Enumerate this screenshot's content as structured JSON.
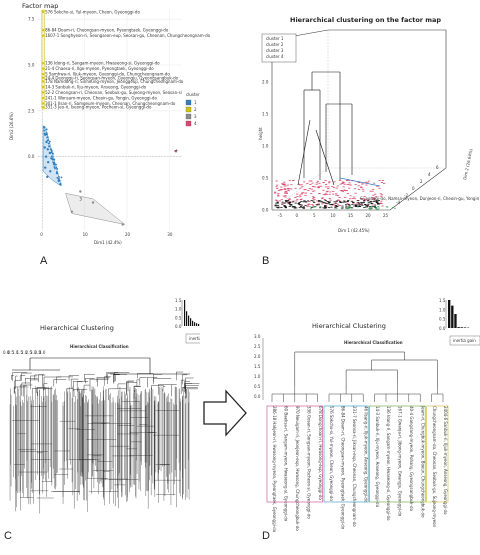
{
  "figure": {
    "panels": [
      "A",
      "B",
      "C",
      "D"
    ]
  },
  "chart_data": [
    {
      "id": "A",
      "type": "scatter",
      "title": "Factor map",
      "xlabel": "Dim1 (42.4%)",
      "ylabel": "Dim2 (26.6%)",
      "xticks": [
        "0",
        "10",
        "20",
        "30"
      ],
      "yticks": [
        "0.0",
        "2.5",
        "5.0",
        "7.5"
      ],
      "xlim": [
        -1,
        33
      ],
      "ylim": [
        -4,
        8
      ],
      "legend_title": "cluster",
      "legend_position": "right",
      "clusters": [
        {
          "name": "1",
          "color": "#2f7fc1"
        },
        {
          "name": "2",
          "color": "#d4c21a"
        },
        {
          "name": "3",
          "color": "#8c8c8c"
        },
        {
          "name": "4",
          "color": "#d9476a"
        }
      ],
      "point_labels": [
        "576 Sokcho-si, Yul-myeon, Cheon, Gyeonggi-do",
        "86-84 Doam-ri, Cheongsan-myeon, Pyeongtaek, Gyeonggi-do",
        "1607-1 Songhyeon-ri, Seongseon-eup, Seosan-gu, Cheonan, Chungcheongnam-do",
        "136 Idong-ri, Sangam-myeon, Hwaseong-si, Gyeonggi-do",
        "21-4 Chaesa-ri, Ilgo-myeon, Pyeongtaek, Gyeonggi-do",
        "5 Samhwa-ri, Iljuk-myeon, Gyeonggi-do, Chungcheongnam-do",
        "24-4 Deonggu-ri, Seongsan-myeon, Gyeongju, Gyeongsangbuk-do",
        "178 Namdong-ri, Sinheung-myeon, Jeonggeup, Chungcheongnam-do",
        "14-3 Sanbuk-ri, Ilju-myeon, Anseong, Gyeonggi-do",
        "52-2 Cheongsan-ri, Cheonan, Seobuk-gu, Sujeong-myeon, Seosan-si",
        "241-1 Wonsam-myeon, Cheoin-gu, Yongin, Gyeonggi-do",
        "301-1 Ilsan-ri, Samgeum-myeon, Cheonan, Chungcheongnam-do",
        "331-3 Jeo-ri, Iseong-myeon, Pocheon-si, Gyeonggi-do"
      ],
      "points": [
        {
          "x": 0.2,
          "y": 7.9,
          "cluster": "2"
        },
        {
          "x": 0.2,
          "y": 6.9,
          "cluster": "2"
        },
        {
          "x": 0.2,
          "y": 6.6,
          "cluster": "2"
        },
        {
          "x": 0.2,
          "y": 5.1,
          "cluster": "2"
        },
        {
          "x": 0.2,
          "y": 4.8,
          "cluster": "2"
        },
        {
          "x": 0.2,
          "y": 4.5,
          "cluster": "2"
        },
        {
          "x": 0.2,
          "y": 4.3,
          "cluster": "2"
        },
        {
          "x": 0.2,
          "y": 4.1,
          "cluster": "2"
        },
        {
          "x": 0.2,
          "y": 3.8,
          "cluster": "2"
        },
        {
          "x": 0.2,
          "y": 3.5,
          "cluster": "2"
        },
        {
          "x": 0.2,
          "y": 3.2,
          "cluster": "2"
        },
        {
          "x": 0.2,
          "y": 2.9,
          "cluster": "2"
        },
        {
          "x": 0.2,
          "y": 2.7,
          "cluster": "2"
        },
        {
          "x": 0.5,
          "y": 1.6,
          "cluster": "1"
        },
        {
          "x": 0.8,
          "y": 1.2,
          "cluster": "1"
        },
        {
          "x": 1.0,
          "y": 0.8,
          "cluster": "1"
        },
        {
          "x": 0.6,
          "y": 0.5,
          "cluster": "1"
        },
        {
          "x": 1.3,
          "y": 0.4,
          "cluster": "1"
        },
        {
          "x": 1.8,
          "y": 0.2,
          "cluster": "1"
        },
        {
          "x": 0.9,
          "y": 0.0,
          "cluster": "1"
        },
        {
          "x": 2.3,
          "y": -0.1,
          "cluster": "1"
        },
        {
          "x": 1.4,
          "y": -0.3,
          "cluster": "1"
        },
        {
          "x": 2.8,
          "y": -0.4,
          "cluster": "1"
        },
        {
          "x": 0.7,
          "y": -0.6,
          "cluster": "1"
        },
        {
          "x": 1.9,
          "y": -0.8,
          "cluster": "1"
        },
        {
          "x": 3.5,
          "y": -0.9,
          "cluster": "1"
        },
        {
          "x": 1.2,
          "y": -1.1,
          "cluster": "1"
        },
        {
          "x": 3.9,
          "y": -1.3,
          "cluster": "1"
        },
        {
          "x": 4.3,
          "y": -1.5,
          "cluster": "1"
        },
        {
          "x": 9.0,
          "y": -1.9,
          "cluster": "3"
        },
        {
          "x": 12.0,
          "y": -2.5,
          "cluster": "3"
        },
        {
          "x": 7.0,
          "y": -3.0,
          "cluster": "3"
        },
        {
          "x": 19.0,
          "y": -3.7,
          "cluster": "3"
        },
        {
          "x": 31.5,
          "y": 0.3,
          "cluster": "4"
        }
      ],
      "hull_3": [
        [
          5.5,
          -2.0
        ],
        [
          12.0,
          -2.3
        ],
        [
          19.5,
          -3.7
        ],
        [
          7.0,
          -3.1
        ]
      ],
      "hull_1": [
        [
          0.2,
          1.7
        ],
        [
          1.0,
          1.4
        ],
        [
          4.5,
          -1.6
        ],
        [
          2.5,
          -1.3
        ],
        [
          0.2,
          -0.8
        ]
      ],
      "hull_2": [
        [
          -0.1,
          8.0
        ],
        [
          0.6,
          8.0
        ],
        [
          0.6,
          2.6
        ],
        [
          -0.1,
          2.6
        ]
      ]
    },
    {
      "id": "B",
      "type": "other",
      "title": "Hierarchical clustering on the factor map",
      "xlabel": "Dim 1 (42.45%)",
      "ylabel": "height",
      "zlabel": "Dim 2 (26.64%)",
      "xticks": [
        "-5",
        "0",
        "5",
        "10",
        "15",
        "20",
        "25"
      ],
      "yticks": [
        "0.0",
        "0.5",
        "1.0",
        "1.5",
        "2.0"
      ],
      "ztick": [
        "-4",
        "-2",
        "0",
        "2",
        "4",
        "6"
      ],
      "legend_position": "top-left",
      "legend": [
        {
          "name": "cluster 1",
          "color": "#000000"
        },
        {
          "name": "cluster 2",
          "color": "#d9476a"
        },
        {
          "name": "cluster 3",
          "color": "#2e9f4e"
        },
        {
          "name": "cluster 4",
          "color": "#3a76c9"
        }
      ],
      "annotation": "Gyeonggi-do, Namsa-myeon, Dunjeon-ri, Cheoin-gu, Yongin"
    },
    {
      "id": "C",
      "type": "other",
      "title": "Hierarchical Clustering",
      "subtitle": "Hierarchical Classification",
      "legend_label": "inertia gain",
      "inertia_gain": [
        1.5,
        0.85,
        0.6,
        0.45,
        0.3,
        0.22,
        0.16,
        0.12,
        0.09,
        0.07,
        0.05,
        0.04,
        0.03,
        0.02
      ],
      "inertia_ticks": [
        "1.5",
        "1.0",
        "0.5",
        "0.0"
      ],
      "dendrogram_y_ticks": [
        "0.0",
        "0.5",
        "1.0",
        "1.5",
        "2.0",
        "2.5",
        "3.0",
        "3.5",
        "4.0"
      ]
    },
    {
      "id": "D",
      "type": "other",
      "title": "Hierarchical Clustering",
      "subtitle": "Hierarchical Classification",
      "legend_label": "inertia gain",
      "inertia_gain": [
        1.5,
        1.2,
        0.75,
        0.05,
        0.04,
        0.03,
        0.02
      ],
      "inertia_ticks": [
        "1.5",
        "1.0",
        "0.5",
        "0.0"
      ],
      "dendrogram_y_ticks": [
        "0.0",
        "0.5",
        "1.0",
        "1.5",
        "2.0",
        "2.5",
        "3.0"
      ],
      "leaves": [
        {
          "label": "286-18 Hakjeon-ri, Hwasong-myeon, Pyeongtaek, Gyeonggi-do",
          "cluster": 1
        },
        {
          "label": "60 Baeksa-ri, Sangam-myeon, Hwaseong-si, Gyeonggi-do",
          "cluster": 1
        },
        {
          "label": "970 Neuigam-ri, Jeonjeon-eup, Hwasong, Chungcheongbuk-do",
          "cluster": 1
        },
        {
          "label": "336 Gosan-ri, Songsan-myeon, Pocheon-si, Gyeonggi-do",
          "cluster": 1
        },
        {
          "label": "678 Dongchoon-ri, Hwasong-eup, Gyeonggi-do",
          "cluster": 1
        },
        {
          "label": "576 Sokcho-si, Yul-myeon, Cheon, Gyeonggi-do",
          "cluster": 2
        },
        {
          "label": "86-84 Doam-ri, Cheongsan-myeon, Pyeongtaek, Gyeonggi-do",
          "cluster": 2
        },
        {
          "label": "231-7 Seonsa-ri, Jiksan-eup, Cheonan, Chungcheongnam-do",
          "cluster": 2
        },
        {
          "label": "46 Ilsang-ri, Iljuk-myeon, Anseong, Gyeonggi-do",
          "cluster": 2
        },
        {
          "label": "14-3 Sanbuk-ri, Ilju-myeon, Anseong, Gyeonggi-do",
          "cluster": 3
        },
        {
          "label": "136 Idong-ri, Sangam-myeon, Hwaseong-si, Gyeonggi-do",
          "cluster": 3
        },
        {
          "label": "167-1 Gwanja-ri, Jibong-myeon, Gwangju, Gyeonggi-do",
          "cluster": 3
        },
        {
          "label": "40-4 Gangdang-myeon, Pohang, Gyeongsangbuk-do",
          "cluster": 3
        },
        {
          "label": "Jeam-ri, Chungbuk-myeon, Boeun, Chungcheongbuk-do",
          "cluster": 3
        },
        {
          "label": "Chungcheongnam-do, Cheonan, Seobuk-gu, Sujeong-myeon",
          "cluster": 4
        },
        {
          "label": "2404-6 Sanbuk-ri, Iljuk-myeon, Anseong, Gyeonggi-do",
          "cluster": 4
        }
      ],
      "cluster_colors": [
        "#d05f9e",
        "#4aa3c9",
        "#79b14a",
        "#d8c04a"
      ]
    }
  ]
}
